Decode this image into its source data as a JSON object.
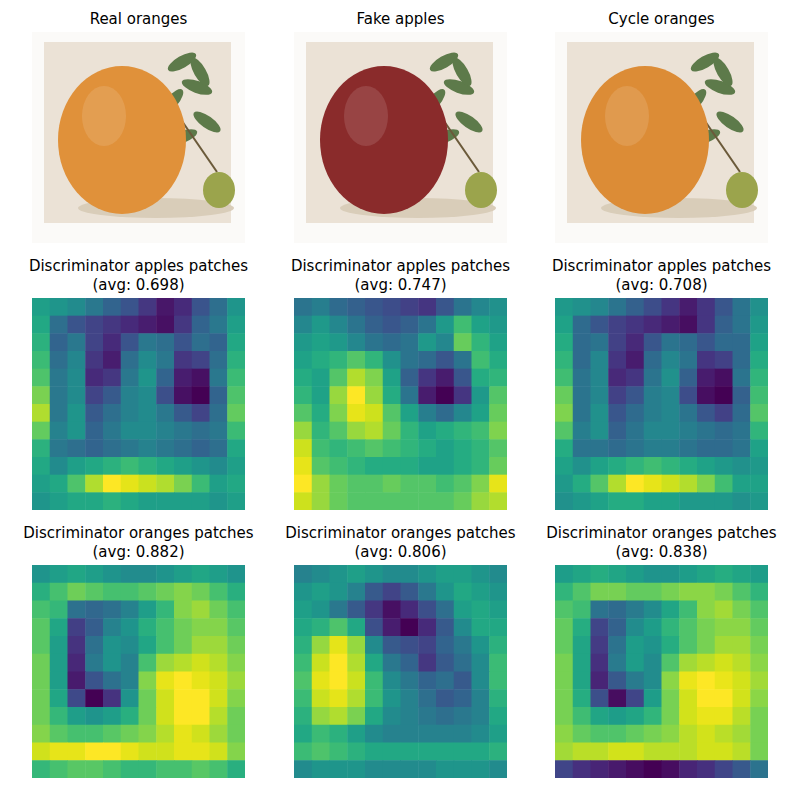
{
  "chart_data": [
    {
      "type": "image",
      "title": "Real oranges",
      "color": "#e0913a",
      "tick_labels": false
    },
    {
      "type": "image",
      "title": "Fake apples",
      "color": "#8a2b2b",
      "tick_labels": false
    },
    {
      "type": "image",
      "title": "Cycle oranges",
      "color": "#dc8c36",
      "tick_labels": false
    },
    {
      "type": "heatmap",
      "title": "Discriminator apples patches\n(avg: 0.698)",
      "tick_labels": false,
      "cells": [
        [
          0.7,
          0.68,
          0.66,
          0.62,
          0.58,
          0.55,
          0.5,
          0.45,
          0.48,
          0.55,
          0.6,
          0.68
        ],
        [
          0.72,
          0.6,
          0.55,
          0.52,
          0.5,
          0.48,
          0.46,
          0.44,
          0.5,
          0.58,
          0.62,
          0.7
        ],
        [
          0.74,
          0.58,
          0.62,
          0.52,
          0.48,
          0.55,
          0.62,
          0.6,
          0.55,
          0.6,
          0.58,
          0.72
        ],
        [
          0.76,
          0.6,
          0.65,
          0.5,
          0.46,
          0.6,
          0.66,
          0.62,
          0.5,
          0.52,
          0.6,
          0.74
        ],
        [
          0.78,
          0.62,
          0.66,
          0.48,
          0.5,
          0.62,
          0.68,
          0.58,
          0.46,
          0.44,
          0.62,
          0.76
        ],
        [
          0.82,
          0.62,
          0.66,
          0.52,
          0.56,
          0.64,
          0.66,
          0.54,
          0.44,
          0.42,
          0.58,
          0.78
        ],
        [
          0.86,
          0.62,
          0.68,
          0.56,
          0.6,
          0.64,
          0.66,
          0.62,
          0.56,
          0.52,
          0.6,
          0.8
        ],
        [
          0.8,
          0.64,
          0.68,
          0.58,
          0.62,
          0.66,
          0.66,
          0.64,
          0.62,
          0.6,
          0.62,
          0.76
        ],
        [
          0.74,
          0.62,
          0.6,
          0.58,
          0.6,
          0.62,
          0.64,
          0.62,
          0.6,
          0.58,
          0.6,
          0.72
        ],
        [
          0.72,
          0.66,
          0.7,
          0.72,
          0.74,
          0.76,
          0.74,
          0.72,
          0.7,
          0.68,
          0.66,
          0.7
        ],
        [
          0.7,
          0.72,
          0.78,
          0.86,
          0.92,
          0.9,
          0.88,
          0.86,
          0.82,
          0.76,
          0.7,
          0.72
        ],
        [
          0.68,
          0.7,
          0.72,
          0.72,
          0.74,
          0.72,
          0.7,
          0.7,
          0.7,
          0.7,
          0.68,
          0.7
        ]
      ]
    },
    {
      "type": "heatmap",
      "title": "Discriminator apples patches\n(avg: 0.747)",
      "tick_labels": false,
      "cells": [
        [
          0.62,
          0.64,
          0.6,
          0.58,
          0.56,
          0.54,
          0.52,
          0.5,
          0.56,
          0.62,
          0.66,
          0.68
        ],
        [
          0.66,
          0.7,
          0.66,
          0.62,
          0.58,
          0.56,
          0.58,
          0.62,
          0.7,
          0.78,
          0.72,
          0.7
        ],
        [
          0.7,
          0.72,
          0.7,
          0.66,
          0.62,
          0.6,
          0.62,
          0.7,
          0.66,
          0.82,
          0.76,
          0.72
        ],
        [
          0.72,
          0.74,
          0.76,
          0.8,
          0.76,
          0.68,
          0.62,
          0.6,
          0.56,
          0.62,
          0.78,
          0.74
        ],
        [
          0.74,
          0.72,
          0.8,
          0.88,
          0.84,
          0.72,
          0.58,
          0.5,
          0.46,
          0.56,
          0.74,
          0.76
        ],
        [
          0.76,
          0.72,
          0.86,
          0.94,
          0.86,
          0.74,
          0.62,
          0.46,
          0.42,
          0.5,
          0.7,
          0.8
        ],
        [
          0.8,
          0.74,
          0.84,
          0.92,
          0.9,
          0.8,
          0.72,
          0.64,
          0.6,
          0.66,
          0.72,
          0.82
        ],
        [
          0.86,
          0.76,
          0.8,
          0.86,
          0.88,
          0.82,
          0.76,
          0.72,
          0.74,
          0.76,
          0.78,
          0.84
        ],
        [
          0.9,
          0.78,
          0.76,
          0.78,
          0.8,
          0.78,
          0.76,
          0.74,
          0.72,
          0.74,
          0.76,
          0.8
        ],
        [
          0.92,
          0.8,
          0.78,
          0.76,
          0.74,
          0.74,
          0.74,
          0.72,
          0.72,
          0.74,
          0.76,
          0.82
        ],
        [
          0.94,
          0.86,
          0.82,
          0.8,
          0.8,
          0.82,
          0.8,
          0.8,
          0.78,
          0.8,
          0.84,
          0.92
        ],
        [
          0.9,
          0.86,
          0.82,
          0.8,
          0.8,
          0.8,
          0.8,
          0.8,
          0.8,
          0.82,
          0.86,
          0.88
        ]
      ]
    },
    {
      "type": "heatmap",
      "title": "Discriminator apples patches\n(avg: 0.708)",
      "tick_labels": false,
      "cells": [
        [
          0.7,
          0.68,
          0.66,
          0.62,
          0.58,
          0.54,
          0.5,
          0.46,
          0.5,
          0.56,
          0.62,
          0.68
        ],
        [
          0.72,
          0.6,
          0.56,
          0.52,
          0.5,
          0.48,
          0.46,
          0.44,
          0.5,
          0.58,
          0.62,
          0.7
        ],
        [
          0.74,
          0.6,
          0.62,
          0.52,
          0.48,
          0.56,
          0.62,
          0.6,
          0.56,
          0.6,
          0.6,
          0.72
        ],
        [
          0.76,
          0.6,
          0.66,
          0.5,
          0.46,
          0.6,
          0.66,
          0.62,
          0.5,
          0.52,
          0.6,
          0.74
        ],
        [
          0.78,
          0.62,
          0.66,
          0.48,
          0.5,
          0.62,
          0.68,
          0.58,
          0.46,
          0.44,
          0.62,
          0.76
        ],
        [
          0.82,
          0.62,
          0.66,
          0.52,
          0.56,
          0.64,
          0.66,
          0.54,
          0.44,
          0.42,
          0.58,
          0.78
        ],
        [
          0.84,
          0.62,
          0.68,
          0.56,
          0.6,
          0.64,
          0.66,
          0.62,
          0.56,
          0.52,
          0.6,
          0.8
        ],
        [
          0.8,
          0.64,
          0.68,
          0.58,
          0.62,
          0.66,
          0.66,
          0.64,
          0.62,
          0.6,
          0.62,
          0.76
        ],
        [
          0.74,
          0.62,
          0.62,
          0.6,
          0.62,
          0.64,
          0.64,
          0.62,
          0.6,
          0.6,
          0.62,
          0.72
        ],
        [
          0.72,
          0.68,
          0.72,
          0.74,
          0.76,
          0.78,
          0.76,
          0.74,
          0.72,
          0.7,
          0.68,
          0.7
        ],
        [
          0.7,
          0.74,
          0.8,
          0.88,
          0.94,
          0.92,
          0.9,
          0.88,
          0.84,
          0.78,
          0.72,
          0.72
        ],
        [
          0.68,
          0.7,
          0.72,
          0.74,
          0.74,
          0.72,
          0.72,
          0.7,
          0.7,
          0.7,
          0.68,
          0.7
        ]
      ]
    },
    {
      "type": "heatmap",
      "title": "Discriminator oranges patches\n(avg: 0.882)",
      "tick_labels": false,
      "cells": [
        [
          0.7,
          0.72,
          0.74,
          0.72,
          0.7,
          0.68,
          0.68,
          0.7,
          0.72,
          0.74,
          0.72,
          0.7
        ],
        [
          0.76,
          0.8,
          0.84,
          0.82,
          0.8,
          0.8,
          0.82,
          0.84,
          0.86,
          0.84,
          0.8,
          0.76
        ],
        [
          0.8,
          0.78,
          0.62,
          0.6,
          0.62,
          0.66,
          0.72,
          0.78,
          0.86,
          0.88,
          0.84,
          0.8
        ],
        [
          0.82,
          0.74,
          0.52,
          0.58,
          0.66,
          0.7,
          0.76,
          0.8,
          0.84,
          0.86,
          0.86,
          0.82
        ],
        [
          0.82,
          0.72,
          0.5,
          0.62,
          0.7,
          0.68,
          0.74,
          0.8,
          0.84,
          0.88,
          0.88,
          0.84
        ],
        [
          0.84,
          0.72,
          0.48,
          0.64,
          0.7,
          0.66,
          0.8,
          0.88,
          0.9,
          0.92,
          0.9,
          0.86
        ],
        [
          0.84,
          0.72,
          0.46,
          0.56,
          0.62,
          0.66,
          0.86,
          0.94,
          0.96,
          0.94,
          0.92,
          0.88
        ],
        [
          0.84,
          0.74,
          0.54,
          0.42,
          0.5,
          0.7,
          0.84,
          0.92,
          0.96,
          0.96,
          0.92,
          0.86
        ],
        [
          0.84,
          0.78,
          0.72,
          0.7,
          0.72,
          0.76,
          0.84,
          0.92,
          0.96,
          0.96,
          0.9,
          0.84
        ],
        [
          0.86,
          0.82,
          0.8,
          0.8,
          0.82,
          0.84,
          0.86,
          0.9,
          0.94,
          0.92,
          0.88,
          0.84
        ],
        [
          0.92,
          0.94,
          0.94,
          0.96,
          0.96,
          0.94,
          0.92,
          0.92,
          0.94,
          0.94,
          0.92,
          0.86
        ],
        [
          0.78,
          0.8,
          0.82,
          0.82,
          0.8,
          0.78,
          0.78,
          0.8,
          0.8,
          0.82,
          0.8,
          0.76
        ]
      ]
    },
    {
      "type": "heatmap",
      "title": "Discriminator oranges patches\n(avg: 0.806)",
      "tick_labels": false,
      "cells": [
        [
          0.68,
          0.7,
          0.72,
          0.74,
          0.72,
          0.7,
          0.7,
          0.72,
          0.74,
          0.74,
          0.72,
          0.7
        ],
        [
          0.72,
          0.74,
          0.72,
          0.68,
          0.6,
          0.56,
          0.6,
          0.66,
          0.72,
          0.76,
          0.74,
          0.72
        ],
        [
          0.74,
          0.72,
          0.66,
          0.6,
          0.54,
          0.48,
          0.52,
          0.58,
          0.64,
          0.74,
          0.76,
          0.74
        ],
        [
          0.76,
          0.78,
          0.82,
          0.76,
          0.58,
          0.5,
          0.46,
          0.52,
          0.6,
          0.7,
          0.76,
          0.76
        ],
        [
          0.78,
          0.88,
          0.94,
          0.88,
          0.7,
          0.6,
          0.58,
          0.56,
          0.62,
          0.66,
          0.72,
          0.78
        ],
        [
          0.8,
          0.92,
          0.96,
          0.9,
          0.76,
          0.66,
          0.62,
          0.54,
          0.6,
          0.64,
          0.7,
          0.8
        ],
        [
          0.82,
          0.94,
          0.96,
          0.92,
          0.8,
          0.7,
          0.66,
          0.62,
          0.64,
          0.6,
          0.7,
          0.8
        ],
        [
          0.8,
          0.92,
          0.94,
          0.9,
          0.8,
          0.72,
          0.68,
          0.64,
          0.6,
          0.62,
          0.68,
          0.78
        ],
        [
          0.78,
          0.88,
          0.9,
          0.86,
          0.76,
          0.7,
          0.68,
          0.66,
          0.64,
          0.66,
          0.68,
          0.76
        ],
        [
          0.76,
          0.8,
          0.78,
          0.74,
          0.7,
          0.68,
          0.68,
          0.68,
          0.68,
          0.68,
          0.7,
          0.74
        ],
        [
          0.8,
          0.82,
          0.8,
          0.78,
          0.76,
          0.76,
          0.76,
          0.76,
          0.76,
          0.76,
          0.76,
          0.78
        ],
        [
          0.7,
          0.72,
          0.72,
          0.72,
          0.7,
          0.7,
          0.7,
          0.7,
          0.72,
          0.72,
          0.72,
          0.7
        ]
      ]
    },
    {
      "type": "heatmap",
      "title": "Discriminator oranges patches\n(avg: 0.838)",
      "tick_labels": false,
      "cells": [
        [
          0.7,
          0.72,
          0.74,
          0.72,
          0.7,
          0.68,
          0.68,
          0.7,
          0.72,
          0.74,
          0.72,
          0.7
        ],
        [
          0.76,
          0.8,
          0.84,
          0.84,
          0.82,
          0.82,
          0.84,
          0.86,
          0.86,
          0.84,
          0.8,
          0.76
        ],
        [
          0.8,
          0.78,
          0.6,
          0.58,
          0.62,
          0.66,
          0.72,
          0.78,
          0.86,
          0.88,
          0.84,
          0.8
        ],
        [
          0.82,
          0.74,
          0.5,
          0.56,
          0.66,
          0.7,
          0.76,
          0.8,
          0.84,
          0.86,
          0.86,
          0.82
        ],
        [
          0.82,
          0.72,
          0.48,
          0.6,
          0.7,
          0.68,
          0.74,
          0.8,
          0.84,
          0.88,
          0.88,
          0.84
        ],
        [
          0.84,
          0.72,
          0.46,
          0.62,
          0.7,
          0.66,
          0.8,
          0.88,
          0.9,
          0.92,
          0.9,
          0.86
        ],
        [
          0.84,
          0.72,
          0.44,
          0.54,
          0.62,
          0.66,
          0.86,
          0.94,
          0.96,
          0.94,
          0.92,
          0.88
        ],
        [
          0.84,
          0.74,
          0.52,
          0.4,
          0.5,
          0.7,
          0.84,
          0.92,
          0.96,
          0.96,
          0.92,
          0.86
        ],
        [
          0.84,
          0.78,
          0.72,
          0.7,
          0.72,
          0.76,
          0.84,
          0.92,
          0.94,
          0.94,
          0.9,
          0.84
        ],
        [
          0.86,
          0.82,
          0.8,
          0.8,
          0.82,
          0.84,
          0.86,
          0.9,
          0.92,
          0.9,
          0.88,
          0.84
        ],
        [
          0.88,
          0.9,
          0.9,
          0.92,
          0.92,
          0.9,
          0.9,
          0.9,
          0.92,
          0.92,
          0.9,
          0.84
        ],
        [
          0.5,
          0.46,
          0.44,
          0.42,
          0.4,
          0.38,
          0.4,
          0.44,
          0.46,
          0.5,
          0.54,
          0.6
        ]
      ]
    }
  ]
}
